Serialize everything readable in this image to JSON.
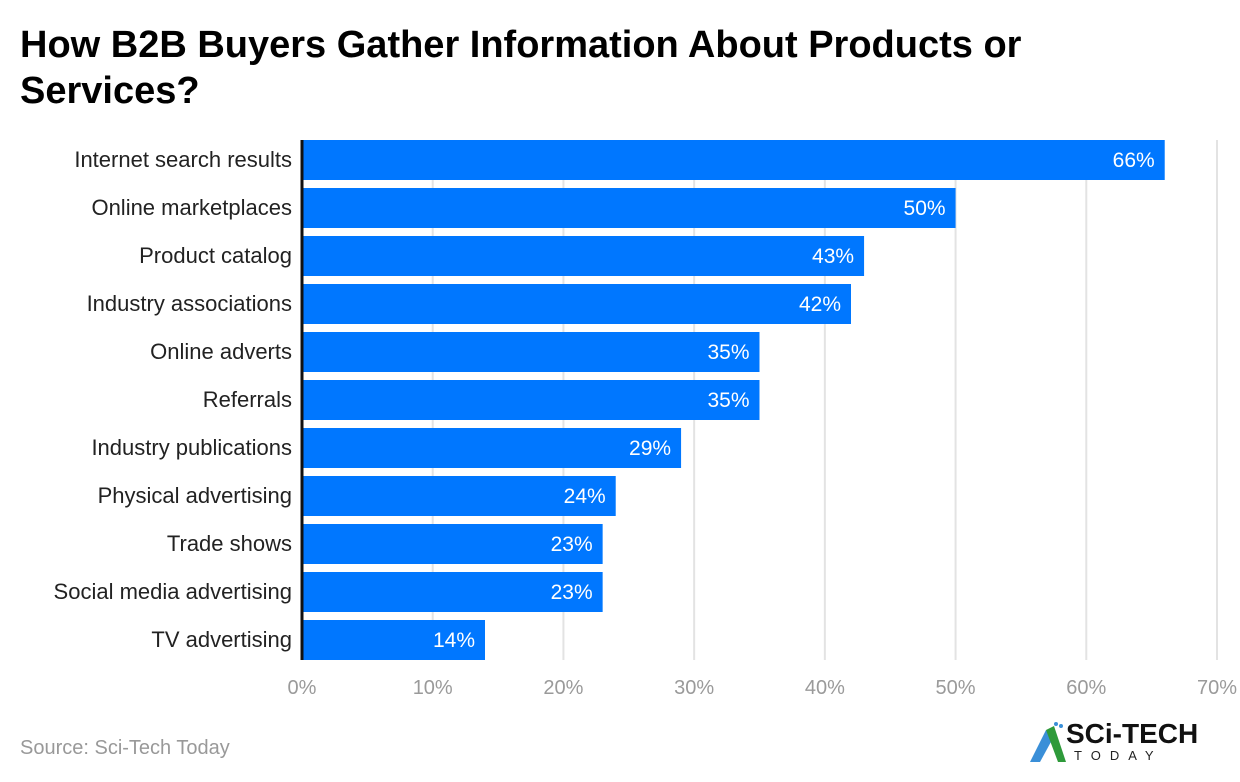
{
  "chart_data": {
    "type": "bar",
    "orientation": "horizontal",
    "title": "How B2B Buyers Gather Information About Products or Services?",
    "categories": [
      "Internet search results",
      "Online marketplaces",
      "Product catalog",
      "Industry associations",
      "Online adverts",
      "Referrals",
      "Industry publications",
      "Physical advertising",
      "Trade shows",
      "Social media advertising",
      "TV advertising"
    ],
    "values": [
      66,
      50,
      43,
      42,
      35,
      35,
      29,
      24,
      23,
      23,
      14
    ],
    "value_labels": [
      "66%",
      "50%",
      "43%",
      "42%",
      "35%",
      "35%",
      "29%",
      "24%",
      "23%",
      "23%",
      "14%"
    ],
    "xlim": [
      0,
      70
    ],
    "xticks": [
      0,
      10,
      20,
      30,
      40,
      50,
      60,
      70
    ],
    "xtick_labels": [
      "0%",
      "10%",
      "20%",
      "30%",
      "40%",
      "50%",
      "60%",
      "70%"
    ],
    "grid": true,
    "bar_color": "#0077FF",
    "xlabel": "",
    "ylabel": ""
  },
  "source": "Source: Sci-Tech Today",
  "logo": {
    "main": "SCi-TECH",
    "sub": "TODAY"
  }
}
